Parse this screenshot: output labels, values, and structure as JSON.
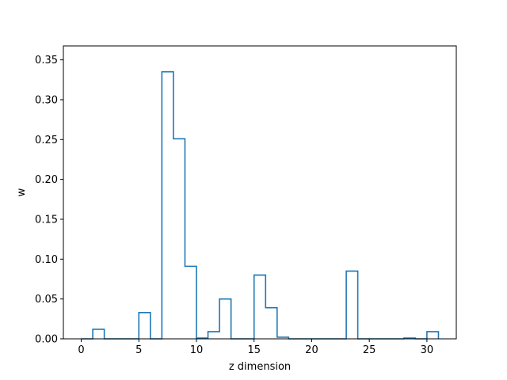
{
  "chart_data": {
    "type": "step",
    "title": "",
    "xlabel": "z dimension",
    "ylabel": "w",
    "xlim": [
      -1.55,
      32.55
    ],
    "ylim": [
      0,
      0.3675
    ],
    "xticks": [
      0,
      5,
      10,
      15,
      20,
      25,
      30
    ],
    "yticks": [
      0.0,
      0.05,
      0.1,
      0.15,
      0.2,
      0.25,
      0.3,
      0.35
    ],
    "ytick_labels": [
      "0.00",
      "0.05",
      "0.10",
      "0.15",
      "0.20",
      "0.25",
      "0.30",
      "0.35"
    ],
    "grid": false,
    "legend": false,
    "color": "#1f77b4",
    "bin_edges": [
      0,
      1,
      2,
      3,
      4,
      5,
      6,
      7,
      8,
      9,
      10,
      11,
      12,
      13,
      14,
      15,
      16,
      17,
      18,
      19,
      20,
      21,
      22,
      23,
      24,
      25,
      26,
      27,
      28,
      29,
      30,
      31
    ],
    "values": [
      0.0,
      0.012,
      0.0,
      0.0,
      0.0,
      0.033,
      0.0,
      0.335,
      0.251,
      0.091,
      0.001,
      0.009,
      0.05,
      0.0,
      0.0,
      0.08,
      0.039,
      0.002,
      0.0,
      0.0,
      0.0,
      0.0,
      0.0,
      0.085,
      0.0,
      0.0,
      0.0,
      0.0,
      0.001,
      0.0,
      0.009
    ]
  }
}
